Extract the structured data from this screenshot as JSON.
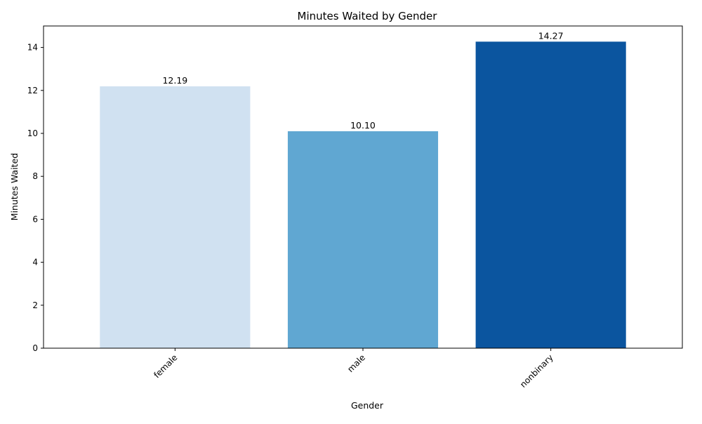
{
  "chart_data": {
    "type": "bar",
    "title": "Minutes Waited by Gender",
    "xlabel": "Gender",
    "ylabel": "Minutes Waited",
    "categories": [
      "female",
      "male",
      "nonbinary"
    ],
    "values": [
      12.19,
      10.1,
      14.27
    ],
    "data_labels": [
      "12.19",
      "10.10",
      "14.27"
    ],
    "colors": [
      "#d0e1f1",
      "#60a7d2",
      "#0b559f"
    ],
    "ylim": [
      0,
      15
    ],
    "yticks": [
      0,
      2,
      4,
      6,
      8,
      10,
      12,
      14
    ],
    "xtick_rotation_deg": 45,
    "grid": false,
    "legend": "none"
  }
}
